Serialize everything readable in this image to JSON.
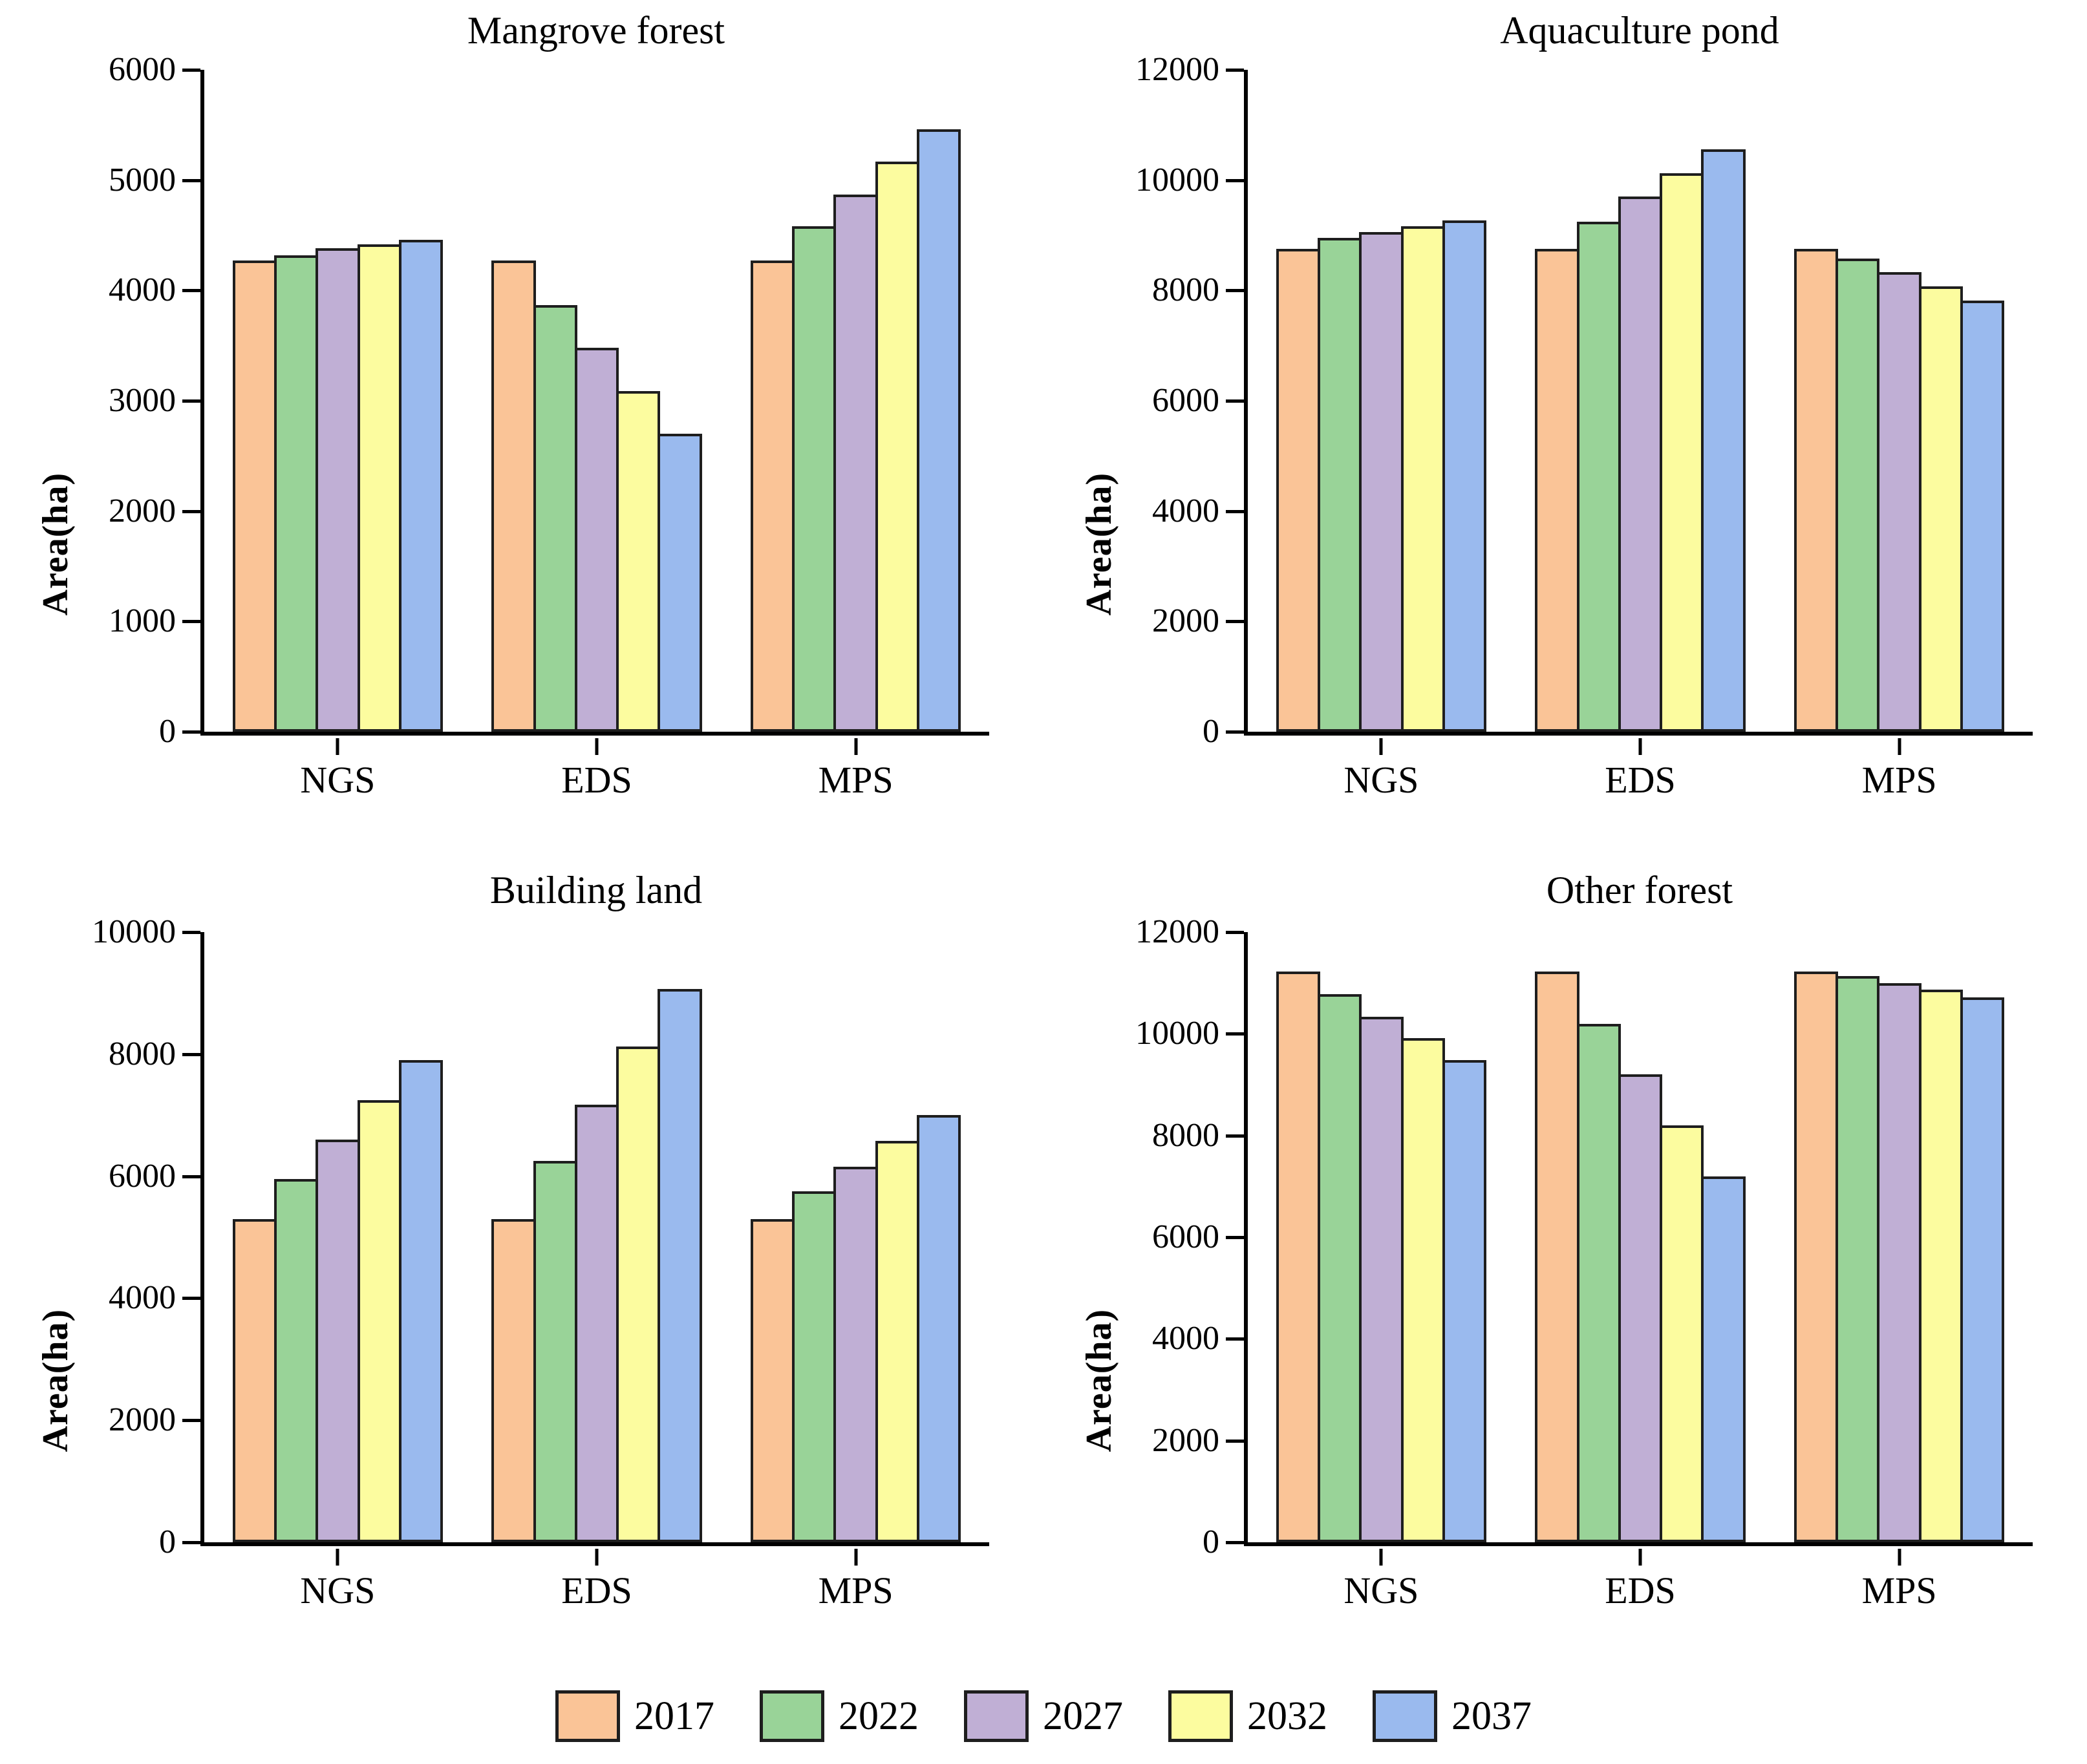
{
  "figure_name": "Projected land-use area by scenario",
  "legend": {
    "items": [
      {
        "label": "2017",
        "color": "#FAC497"
      },
      {
        "label": "2022",
        "color": "#99D398"
      },
      {
        "label": "2027",
        "color": "#C0AFD5"
      },
      {
        "label": "2032",
        "color": "#FCFC9F"
      },
      {
        "label": "2037",
        "color": "#9ABAEE"
      }
    ]
  },
  "style": {
    "bar_border_color": "#1e1e1e",
    "axis_color": "#000000"
  },
  "chart_data": [
    {
      "type": "bar",
      "title": "Mangrove forest",
      "ylabel": "Area(ha)",
      "categories": [
        "NGS",
        "EDS",
        "MPS"
      ],
      "ylim": [
        0,
        6000
      ],
      "ytick_step": 1000,
      "grid": false,
      "series": [
        {
          "name": "2017",
          "values": [
            4270,
            4270,
            4270
          ]
        },
        {
          "name": "2022",
          "values": [
            4320,
            3870,
            4580
          ]
        },
        {
          "name": "2027",
          "values": [
            4380,
            3480,
            4870
          ]
        },
        {
          "name": "2032",
          "values": [
            4420,
            3090,
            5170
          ]
        },
        {
          "name": "2037",
          "values": [
            4460,
            2700,
            5460
          ]
        }
      ]
    },
    {
      "type": "bar",
      "title": "Aquaculture pond",
      "ylabel": "Area(ha)",
      "categories": [
        "NGS",
        "EDS",
        "MPS"
      ],
      "ylim": [
        0,
        12000
      ],
      "ytick_step": 2000,
      "grid": false,
      "series": [
        {
          "name": "2017",
          "values": [
            8750,
            8750,
            8750
          ]
        },
        {
          "name": "2022",
          "values": [
            8950,
            9250,
            8580
          ]
        },
        {
          "name": "2027",
          "values": [
            9060,
            9700,
            8330
          ]
        },
        {
          "name": "2032",
          "values": [
            9160,
            10130,
            8080
          ]
        },
        {
          "name": "2037",
          "values": [
            9270,
            10560,
            7820
          ]
        }
      ]
    },
    {
      "type": "bar",
      "title": "Building land",
      "ylabel": "Area(ha)",
      "categories": [
        "NGS",
        "EDS",
        "MPS"
      ],
      "ylim": [
        0,
        10000
      ],
      "ytick_step": 2000,
      "grid": false,
      "series": [
        {
          "name": "2017",
          "values": [
            5300,
            5300,
            5300
          ]
        },
        {
          "name": "2022",
          "values": [
            5950,
            6250,
            5750
          ]
        },
        {
          "name": "2027",
          "values": [
            6600,
            7170,
            6150
          ]
        },
        {
          "name": "2032",
          "values": [
            7250,
            8120,
            6580
          ]
        },
        {
          "name": "2037",
          "values": [
            7900,
            9070,
            7000
          ]
        }
      ]
    },
    {
      "type": "bar",
      "title": "Other forest",
      "ylabel": "Area(ha)",
      "categories": [
        "NGS",
        "EDS",
        "MPS"
      ],
      "ylim": [
        0,
        12000
      ],
      "ytick_step": 2000,
      "grid": false,
      "series": [
        {
          "name": "2017",
          "values": [
            11220,
            11220,
            11230
          ]
        },
        {
          "name": "2022",
          "values": [
            10780,
            10200,
            11130
          ]
        },
        {
          "name": "2027",
          "values": [
            10330,
            9200,
            11000
          ]
        },
        {
          "name": "2032",
          "values": [
            9920,
            8200,
            10870
          ]
        },
        {
          "name": "2037",
          "values": [
            9480,
            7200,
            10720
          ]
        }
      ]
    }
  ]
}
